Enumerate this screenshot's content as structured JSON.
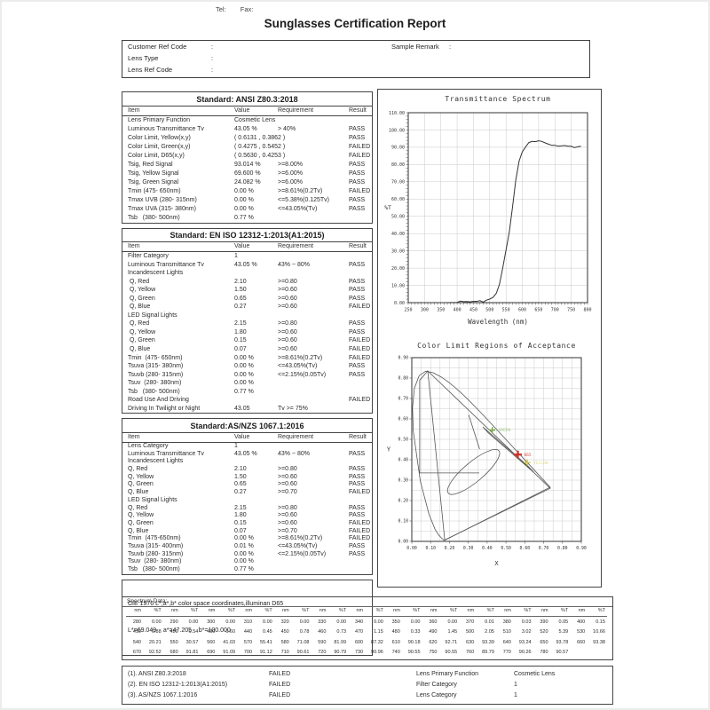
{
  "header": {
    "tel_label": "Tel:",
    "fax_label": "Fax:",
    "title": "Sunglasses Certification Report"
  },
  "info_box": {
    "separator": ":",
    "fields": [
      {
        "label": "Customer Ref Code",
        "value": ""
      },
      {
        "label": "Lens Type",
        "value": ""
      },
      {
        "label": "Lens Ref Code",
        "value": ""
      }
    ],
    "remark_label": "Sample Remark",
    "remark_value": ""
  },
  "standards": [
    {
      "title": "Standard: ANSI Z80.3:2018",
      "columns": [
        "Item",
        "Value",
        "Requirement",
        "Result"
      ],
      "rows": [
        [
          "Lens Primary Function",
          "Cosmetic Lens",
          "",
          ""
        ],
        [
          "Luminous Transmittance Tv",
          "43.05 %",
          "> 40%",
          "PASS"
        ],
        [
          "Color Limit, Yellow(x,y)",
          "( 0.6131 , 0.3862 )",
          "",
          "PASS"
        ],
        [
          "Color Limit, Green(x,y)",
          "( 0.4275 , 0.5452 )",
          "",
          "FAILED"
        ],
        [
          "Color Limit, D65(x,y)",
          "( 0.5630 , 0.4253 )",
          "",
          "FAILED"
        ],
        [
          "Tsig, Red Signal",
          "93.014 %",
          ">=8.00%",
          "PASS"
        ],
        [
          "Tsig, Yellow Signal",
          "69.600 %",
          ">=6.00%",
          "PASS"
        ],
        [
          "Tsig, Green Signal",
          "24.082 %",
          ">=6.00%",
          "PASS"
        ],
        [
          "Tmin (475- 650nm)",
          "0.00 %",
          ">=8.61%(0.2Tv)",
          "FAILED"
        ],
        [
          "Tmax UVB (280- 315nm)",
          "0.00 %",
          "<=5.38%(0.125Tv)",
          "PASS"
        ],
        [
          "Tmax UVA (315- 380nm)",
          "0.00 %",
          "<=43.05%(Tv)",
          "PASS"
        ],
        [
          "Tsb   (380- 500nm)",
          "0.77 %",
          "",
          ""
        ]
      ]
    },
    {
      "title": "Standard: EN ISO 12312-1:2013(A1:2015)",
      "columns": [
        "Item",
        "Value",
        "Requirement",
        "Result"
      ],
      "rows": [
        [
          "Filter Category",
          "1",
          "",
          ""
        ],
        [
          "Luminous Transmittance Tv",
          "43.05 %",
          "43% ~ 80%",
          "PASS"
        ],
        [
          "Incandescent Lights",
          "",
          "",
          ""
        ],
        [
          " Q, Red",
          "2.10",
          ">=0.80",
          "PASS"
        ],
        [
          " Q, Yellow",
          "1.50",
          ">=0.60",
          "PASS"
        ],
        [
          " Q, Green",
          "0.65",
          ">=0.60",
          "PASS"
        ],
        [
          " Q, Blue",
          "0.27",
          ">=0.60",
          "FAILED"
        ],
        [
          "LED Signal Lights",
          "",
          "",
          ""
        ],
        [
          " Q, Red",
          "2.15",
          ">=0.80",
          "PASS"
        ],
        [
          " Q, Yellow",
          "1.80",
          ">=0.60",
          "PASS"
        ],
        [
          " Q, Green",
          "0.15",
          ">=0.60",
          "FAILED"
        ],
        [
          " Q, Blue",
          "0.07",
          ">=0.60",
          "FAILED"
        ],
        [
          "Tmin  (475- 650nm)",
          "0.00 %",
          ">=8.61%(0.2Tv)",
          "FAILED"
        ],
        [
          "Tsuva (315- 380nm)",
          "0.00 %",
          "<=43.05%(Tv)",
          "PASS"
        ],
        [
          "Tsuvb (280- 315nm)",
          "0.00 %",
          "<=2.15%(0.05Tv)",
          "PASS"
        ],
        [
          "Tsuv  (280- 380nm)",
          "0.00 %",
          "",
          ""
        ],
        [
          "Tsb   (380- 500nm)",
          "0.77 %",
          "",
          ""
        ],
        [
          "Road Use And Driving",
          "",
          "",
          "FAILED"
        ],
        [
          "Driving In Twilight or Night",
          "43.05",
          "Tv >= 75%",
          ""
        ]
      ]
    },
    {
      "title": "Standard:AS/NZS 1067.1:2016",
      "columns": [
        "Item",
        "Value",
        "Requirement",
        "Result"
      ],
      "rows": [
        [
          "Lens Category",
          "1",
          "",
          ""
        ],
        [
          "Luminous Transmittance Tv",
          "43.05 %",
          "43% ~ 80%",
          "PASS"
        ],
        [
          "Incandescent Lights",
          "",
          "",
          ""
        ],
        [
          "Q, Red",
          "2.10",
          ">=0.80",
          "PASS"
        ],
        [
          "Q, Yellow",
          "1.50",
          ">=0.60",
          "PASS"
        ],
        [
          "Q, Green",
          "0.65",
          ">=0.60",
          "PASS"
        ],
        [
          "Q, Blue",
          "0.27",
          ">=0.70",
          "FAILED"
        ],
        [
          "LED Signal Lights",
          "",
          "",
          ""
        ],
        [
          "Q, Red",
          "2.15",
          ">=0.80",
          "PASS"
        ],
        [
          "Q, Yellow",
          "1.80",
          ">=0.60",
          "PASS"
        ],
        [
          "Q, Green",
          "0.15",
          ">=0.60",
          "FAILED"
        ],
        [
          "Q, Blue",
          "0.07",
          ">=0.70",
          "FAILED"
        ],
        [
          "Tmin  (475-650nm)",
          "0.00 %",
          ">=8.61%(0.2Tv)",
          "FAILED"
        ],
        [
          "Tsuva (315- 400nm)",
          "0.01 %",
          "<=43.05%(Tv)",
          "PASS"
        ],
        [
          "Tsuvb (280- 315nm)",
          "0.00 %",
          "<=2.15%(0.05Tv)",
          "PASS"
        ],
        [
          "Tsuv  (280- 380nm)",
          "0.00 %",
          "",
          ""
        ],
        [
          "Tsb   (380- 500nm)",
          "0.77 %",
          "",
          ""
        ]
      ]
    }
  ],
  "cie_note": {
    "line1": "CIE 1976 L*,a*,b* color space coordinates,illuminan D65",
    "line2": "L*=69.049    a*=47.205    b*=100.000"
  },
  "chart_data": [
    {
      "type": "line",
      "title": "Transmittance Spectrum",
      "xlabel": "Wavelength (nm)",
      "ylabel": "%T",
      "xlim": [
        250,
        800
      ],
      "ylim": [
        0,
        110
      ],
      "grid": true,
      "x_ticks": [
        250,
        300,
        350,
        400,
        450,
        500,
        550,
        600,
        650,
        700,
        750,
        800
      ],
      "y_ticks": [
        0,
        10,
        20,
        30,
        40,
        50,
        60,
        70,
        80,
        90,
        100,
        110
      ],
      "x": [
        280,
        290,
        300,
        310,
        320,
        330,
        340,
        350,
        360,
        370,
        380,
        390,
        400,
        410,
        420,
        430,
        440,
        450,
        460,
        470,
        480,
        490,
        500,
        510,
        520,
        530,
        540,
        550,
        560,
        570,
        580,
        590,
        600,
        610,
        620,
        630,
        640,
        650,
        660,
        670,
        680,
        690,
        700,
        710,
        720,
        730,
        740,
        750,
        760,
        770,
        780
      ],
      "y": [
        0,
        0,
        0,
        0,
        0,
        0,
        0,
        0,
        0,
        0.01,
        0.03,
        0.05,
        0.15,
        0.88,
        0.54,
        0.6,
        0.45,
        0.78,
        0.73,
        1.15,
        0.33,
        1.45,
        2.05,
        3.02,
        5.39,
        10.66,
        20.21,
        30.57,
        41.03,
        55.41,
        71.08,
        81.99,
        87.32,
        90.18,
        92.71,
        93.39,
        93.24,
        93.78,
        93.38,
        92.52,
        91.81,
        91.09,
        91.12,
        90.61,
        90.79,
        90.96,
        90.55,
        90.55,
        89.79,
        90.26,
        90.57
      ]
    },
    {
      "type": "scatter",
      "title": "Color Limit Regions of Acceptance",
      "xlabel": "X",
      "ylabel": "Y",
      "xlim": [
        0,
        0.9
      ],
      "ylim": [
        0,
        0.9
      ],
      "grid": true,
      "grid_step": 0.05,
      "x_ticks": [
        0,
        0.1,
        0.2,
        0.3,
        0.4,
        0.5,
        0.6,
        0.7,
        0.8,
        0.9
      ],
      "y_ticks": [
        0,
        0.1,
        0.2,
        0.3,
        0.4,
        0.5,
        0.6,
        0.7,
        0.8,
        0.9
      ],
      "points": [
        {
          "label": "GREEN",
          "x": 0.4275,
          "y": 0.5452,
          "color": "#76b043"
        },
        {
          "label": "D65",
          "x": 0.563,
          "y": 0.4253,
          "color": "#d03028"
        },
        {
          "label": "YELLOW",
          "x": 0.6131,
          "y": 0.3862,
          "color": "#d2c94f"
        }
      ],
      "shapes": {
        "spectral_locus": [
          [
            0.1741,
            0.005
          ],
          [
            0.1733,
            0.0048
          ],
          [
            0.1714,
            0.0051
          ],
          [
            0.1689,
            0.0069
          ],
          [
            0.1644,
            0.0109
          ],
          [
            0.1566,
            0.0177
          ],
          [
            0.144,
            0.0297
          ],
          [
            0.1241,
            0.0578
          ],
          [
            0.0913,
            0.1327
          ],
          [
            0.0454,
            0.295
          ],
          [
            0.0082,
            0.5384
          ],
          [
            0.0039,
            0.6548
          ],
          [
            0.0139,
            0.7502
          ],
          [
            0.0389,
            0.812
          ],
          [
            0.0743,
            0.8338
          ],
          [
            0.1142,
            0.8262
          ],
          [
            0.1547,
            0.8059
          ],
          [
            0.1929,
            0.7816
          ],
          [
            0.2296,
            0.7543
          ],
          [
            0.2658,
            0.7243
          ],
          [
            0.3016,
            0.6923
          ],
          [
            0.3373,
            0.6589
          ],
          [
            0.3731,
            0.6245
          ],
          [
            0.4087,
            0.5896
          ],
          [
            0.4441,
            0.5547
          ],
          [
            0.4788,
            0.5202
          ],
          [
            0.5125,
            0.4866
          ],
          [
            0.5448,
            0.4544
          ],
          [
            0.5752,
            0.4242
          ],
          [
            0.6029,
            0.3965
          ],
          [
            0.627,
            0.3725
          ],
          [
            0.6658,
            0.334
          ],
          [
            0.6915,
            0.3083
          ],
          [
            0.7079,
            0.292
          ],
          [
            0.719,
            0.2809
          ],
          [
            0.726,
            0.274
          ],
          [
            0.7347,
            0.2653
          ]
        ],
        "triangle": [
          [
            0.085,
            0.835
          ],
          [
            0.735,
            0.26
          ],
          [
            0.175,
            0.007
          ]
        ],
        "region_polyline": [
          [
            0.085,
            0.835
          ],
          [
            0.042,
            0.79
          ],
          [
            0.042,
            0.335
          ],
          [
            0.358,
            0.335
          ]
        ],
        "segment": [
          [
            0.302,
            0.62
          ],
          [
            0.36,
            0.452
          ]
        ],
        "yellow_band": [
          [
            0.377,
            0.561
          ],
          [
            0.618,
            0.368
          ],
          [
            0.648,
            0.338
          ],
          [
            0.407,
            0.531
          ]
        ],
        "ellipse": {
          "cx": 0.328,
          "cy": 0.34,
          "r_major": 0.175,
          "r_minor": 0.052,
          "angle_deg": -40
        }
      }
    }
  ],
  "spectrum_table": {
    "label": "Spectrum Data:",
    "col_headers": [
      "nm",
      "%T"
    ],
    "rows": [
      [
        [
          "280",
          "0.00"
        ],
        [
          "290",
          "0.00"
        ],
        [
          "300",
          "0.00"
        ],
        [
          "310",
          "0.00"
        ],
        [
          "320",
          "0.00"
        ],
        [
          "330",
          "0.00"
        ],
        [
          "340",
          "0.00"
        ],
        [
          "350",
          "0.00"
        ],
        [
          "360",
          "0.00"
        ],
        [
          "370",
          "0.01"
        ],
        [
          "380",
          "0.03"
        ],
        [
          "390",
          "0.05"
        ],
        [
          "400",
          "0.15"
        ]
      ],
      [
        [
          "410",
          "0.88"
        ],
        [
          "420",
          "0.54"
        ],
        [
          "430",
          "0.60"
        ],
        [
          "440",
          "0.45"
        ],
        [
          "450",
          "0.78"
        ],
        [
          "460",
          "0.73"
        ],
        [
          "470",
          "1.15"
        ],
        [
          "480",
          "0.33"
        ],
        [
          "490",
          "1.45"
        ],
        [
          "500",
          "2.05"
        ],
        [
          "510",
          "3.02"
        ],
        [
          "520",
          "5.39"
        ],
        [
          "530",
          "10.66"
        ]
      ],
      [
        [
          "540",
          "20.21"
        ],
        [
          "550",
          "30.57"
        ],
        [
          "560",
          "41.03"
        ],
        [
          "570",
          "55.41"
        ],
        [
          "580",
          "71.08"
        ],
        [
          "590",
          "81.99"
        ],
        [
          "600",
          "87.32"
        ],
        [
          "610",
          "90.18"
        ],
        [
          "620",
          "92.71"
        ],
        [
          "630",
          "93.39"
        ],
        [
          "640",
          "93.24"
        ],
        [
          "650",
          "93.78"
        ],
        [
          "660",
          "93.38"
        ]
      ],
      [
        [
          "670",
          "92.52"
        ],
        [
          "680",
          "91.81"
        ],
        [
          "690",
          "91.09"
        ],
        [
          "700",
          "91.12"
        ],
        [
          "710",
          "90.61"
        ],
        [
          "720",
          "90.79"
        ],
        [
          "730",
          "90.96"
        ],
        [
          "740",
          "90.55"
        ],
        [
          "750",
          "90.55"
        ],
        [
          "760",
          "89.79"
        ],
        [
          "770",
          "90.26"
        ],
        [
          "780",
          "90.57"
        ]
      ]
    ]
  },
  "footer": {
    "rows": [
      {
        "standard": "(1). ANSI Z80.3:2018",
        "result": "FAILED",
        "property": "Lens Primary Function",
        "value": "Cosmetic Lens"
      },
      {
        "standard": "(2). EN ISO 12312-1:2013(A1:2015)",
        "result": "FAILED",
        "property": "Filter Category",
        "value": "1"
      },
      {
        "standard": "(3). AS/NZS 1067.1:2016",
        "result": "FAILED",
        "property": "Lens Category",
        "value": "1"
      }
    ]
  }
}
